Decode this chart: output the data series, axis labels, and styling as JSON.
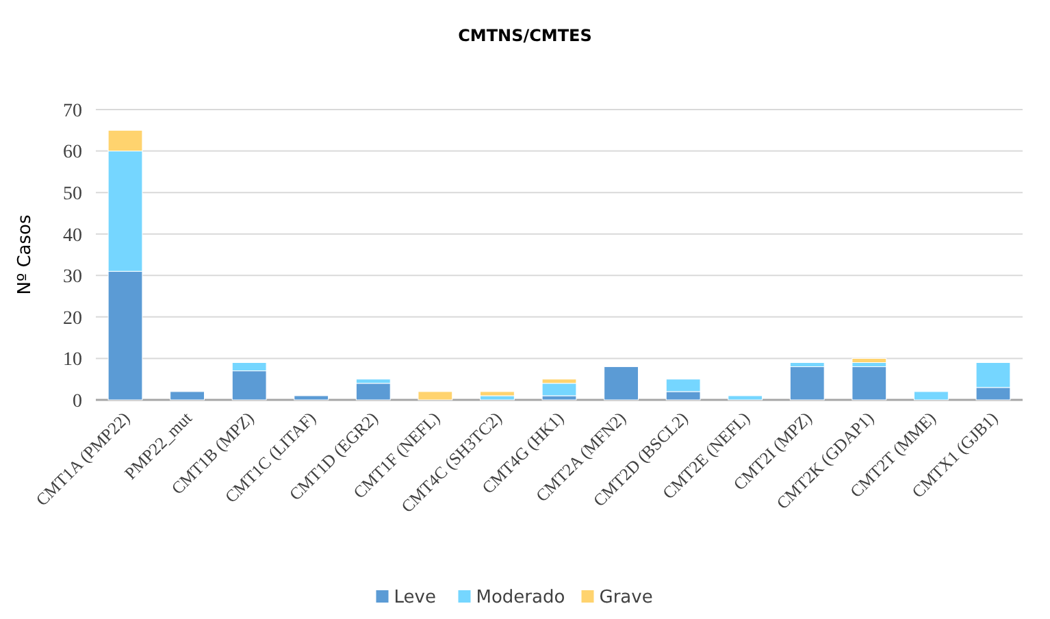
{
  "chart_data": {
    "type": "bar",
    "title": "CMTNS/CMTES",
    "ylabel": "Nº Casos",
    "stacked": true,
    "grid": "y",
    "legend": "bottom",
    "categories": [
      "CMT1A (PMP22)",
      "PMP22_mut",
      "CMT1B (MPZ)",
      "CMT1C (LITAF)",
      "CMT1D (EGR2)",
      "CMT1F (NEFL)",
      "CMT4C (SH3TC2)",
      "CMT4G (HK1)",
      "CMT2A (MFN2)",
      "CMT2D (BSCL2)",
      "CMT2E (NEFL)",
      "CMT2I (MPZ)",
      "CMT2K (GDAP1)",
      "CMT2T (MME)",
      "CMTX1 (GJB1)"
    ],
    "series": [
      {
        "name": "Leve",
        "color": "#5b9bd5",
        "values": [
          31,
          2,
          7,
          1,
          4,
          0,
          0,
          1,
          8,
          2,
          0,
          8,
          8,
          0,
          3
        ]
      },
      {
        "name": "Moderado",
        "color": "#75d6ff",
        "values": [
          29,
          0,
          2,
          0,
          1,
          0,
          1,
          3,
          0,
          3,
          1,
          1,
          1,
          2,
          6
        ]
      },
      {
        "name": "Grave",
        "color": "#ffd36e",
        "values": [
          5,
          0,
          0,
          0,
          0,
          2,
          1,
          1,
          0,
          0,
          0,
          0,
          1,
          0,
          0
        ]
      }
    ],
    "ylim": [
      0,
      70
    ],
    "yticks": [
      0,
      10,
      20,
      30,
      40,
      50,
      60,
      70
    ]
  }
}
